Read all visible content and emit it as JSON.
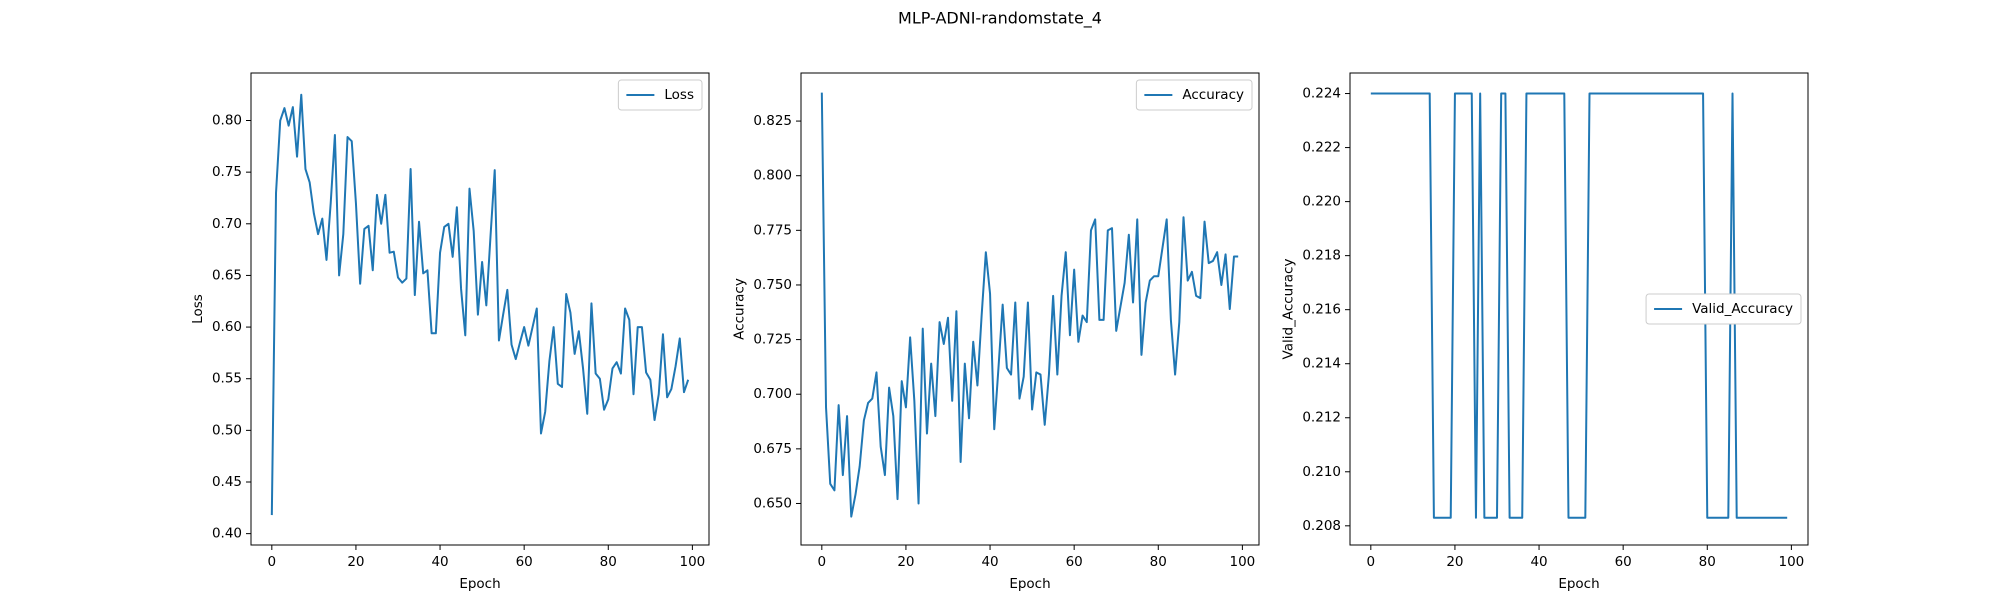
{
  "title": "MLP-ADNI-randomstate_4",
  "chart_data": [
    {
      "type": "line",
      "x_label": "Epoch",
      "y_label": "Loss",
      "legend": "upper right",
      "x": [
        0,
        1,
        2,
        3,
        4,
        5,
        6,
        7,
        8,
        9,
        10,
        11,
        12,
        13,
        14,
        15,
        16,
        17,
        18,
        19,
        20,
        21,
        22,
        23,
        24,
        25,
        26,
        27,
        28,
        29,
        30,
        31,
        32,
        33,
        34,
        35,
        36,
        37,
        38,
        39,
        40,
        41,
        42,
        43,
        44,
        45,
        46,
        47,
        48,
        49,
        50,
        51,
        52,
        53,
        54,
        55,
        56,
        57,
        58,
        59,
        60,
        61,
        62,
        63,
        64,
        65,
        66,
        67,
        68,
        69,
        70,
        71,
        72,
        73,
        74,
        75,
        76,
        77,
        78,
        79,
        80,
        81,
        82,
        83,
        84,
        85,
        86,
        87,
        88,
        89,
        90,
        91,
        92,
        93,
        94,
        95,
        96,
        97,
        98,
        99
      ],
      "series": [
        {
          "name": "Loss",
          "color": "#1f77b4",
          "values": [
            0.418,
            0.73,
            0.8,
            0.812,
            0.795,
            0.813,
            0.765,
            0.825,
            0.753,
            0.74,
            0.71,
            0.69,
            0.705,
            0.665,
            0.72,
            0.786,
            0.65,
            0.69,
            0.784,
            0.78,
            0.72,
            0.642,
            0.695,
            0.698,
            0.655,
            0.728,
            0.7,
            0.728,
            0.672,
            0.673,
            0.648,
            0.643,
            0.647,
            0.753,
            0.631,
            0.702,
            0.652,
            0.655,
            0.594,
            0.594,
            0.672,
            0.697,
            0.7,
            0.668,
            0.716,
            0.637,
            0.592,
            0.734,
            0.693,
            0.612,
            0.663,
            0.621,
            0.688,
            0.752,
            0.587,
            0.612,
            0.636,
            0.583,
            0.569,
            0.585,
            0.6,
            0.582,
            0.6,
            0.618,
            0.497,
            0.518,
            0.567,
            0.6,
            0.545,
            0.542,
            0.632,
            0.614,
            0.574,
            0.596,
            0.56,
            0.516,
            0.623,
            0.555,
            0.55,
            0.52,
            0.53,
            0.56,
            0.566,
            0.555,
            0.618,
            0.607,
            0.535,
            0.6,
            0.6,
            0.556,
            0.549,
            0.51,
            0.535,
            0.593,
            0.532,
            0.54,
            0.562,
            0.589,
            0.537,
            0.549
          ]
        }
      ],
      "xlim": [
        -4.95,
        103.95
      ],
      "xticks": [
        0,
        20,
        40,
        60,
        80,
        100
      ],
      "ylim": [
        0.389,
        0.846
      ],
      "yticks": [
        {
          "value": 0.4,
          "label": "0.40"
        },
        0.45,
        {
          "value": 0.5,
          "label": "0.50"
        },
        0.55,
        {
          "value": 0.6,
          "label": "0.60"
        },
        0.65,
        {
          "value": 0.7,
          "label": "0.70"
        },
        0.75,
        {
          "value": 0.8,
          "label": "0.80"
        }
      ]
    },
    {
      "type": "line",
      "x_label": "Epoch",
      "y_label": "Accuracy",
      "legend": "upper right",
      "x": [
        0,
        1,
        2,
        3,
        4,
        5,
        6,
        7,
        8,
        9,
        10,
        11,
        12,
        13,
        14,
        15,
        16,
        17,
        18,
        19,
        20,
        21,
        22,
        23,
        24,
        25,
        26,
        27,
        28,
        29,
        30,
        31,
        32,
        33,
        34,
        35,
        36,
        37,
        38,
        39,
        40,
        41,
        42,
        43,
        44,
        45,
        46,
        47,
        48,
        49,
        50,
        51,
        52,
        53,
        54,
        55,
        56,
        57,
        58,
        59,
        60,
        61,
        62,
        63,
        64,
        65,
        66,
        67,
        68,
        69,
        70,
        71,
        72,
        73,
        74,
        75,
        76,
        77,
        78,
        79,
        80,
        81,
        82,
        83,
        84,
        85,
        86,
        87,
        88,
        89,
        90,
        91,
        92,
        93,
        94,
        95,
        96,
        97,
        98,
        99
      ],
      "series": [
        {
          "name": "Accuracy",
          "color": "#1f77b4",
          "values": [
            0.838,
            0.694,
            0.659,
            0.656,
            0.695,
            0.663,
            0.69,
            0.644,
            0.654,
            0.667,
            0.688,
            0.696,
            0.698,
            0.71,
            0.676,
            0.663,
            0.703,
            0.69,
            0.652,
            0.706,
            0.694,
            0.726,
            0.697,
            0.65,
            0.73,
            0.682,
            0.714,
            0.69,
            0.733,
            0.723,
            0.735,
            0.697,
            0.738,
            0.669,
            0.714,
            0.689,
            0.724,
            0.704,
            0.736,
            0.765,
            0.746,
            0.684,
            0.712,
            0.741,
            0.712,
            0.709,
            0.742,
            0.698,
            0.708,
            0.742,
            0.693,
            0.71,
            0.709,
            0.686,
            0.709,
            0.745,
            0.709,
            0.745,
            0.765,
            0.727,
            0.757,
            0.724,
            0.736,
            0.733,
            0.775,
            0.78,
            0.734,
            0.734,
            0.775,
            0.776,
            0.729,
            0.74,
            0.751,
            0.773,
            0.742,
            0.78,
            0.718,
            0.742,
            0.752,
            0.754,
            0.754,
            0.767,
            0.78,
            0.734,
            0.709,
            0.733,
            0.781,
            0.752,
            0.756,
            0.745,
            0.744,
            0.779,
            0.76,
            0.761,
            0.765,
            0.75,
            0.764,
            0.739,
            0.763,
            0.763
          ]
        }
      ],
      "xlim": [
        -4.95,
        103.95
      ],
      "xticks": [
        0,
        20,
        40,
        60,
        80,
        100
      ],
      "ylim": [
        0.631,
        0.847
      ],
      "yticks": [
        {
          "value": 0.65,
          "label": "0.650"
        },
        0.675,
        {
          "value": 0.7,
          "label": "0.700"
        },
        0.725,
        {
          "value": 0.75,
          "label": "0.750"
        },
        0.775,
        {
          "value": 0.8,
          "label": "0.800"
        },
        0.825
      ]
    },
    {
      "type": "line",
      "x_label": "Epoch",
      "y_label": "Valid_Accuracy",
      "legend": "center right",
      "x": [
        0,
        1,
        2,
        3,
        4,
        5,
        6,
        7,
        8,
        9,
        10,
        11,
        12,
        13,
        14,
        15,
        16,
        17,
        18,
        19,
        20,
        21,
        22,
        23,
        24,
        25,
        26,
        27,
        28,
        29,
        30,
        31,
        32,
        33,
        34,
        35,
        36,
        37,
        38,
        39,
        40,
        41,
        42,
        43,
        44,
        45,
        46,
        47,
        48,
        49,
        50,
        51,
        52,
        53,
        54,
        55,
        56,
        57,
        58,
        59,
        60,
        61,
        62,
        63,
        64,
        65,
        66,
        67,
        68,
        69,
        70,
        71,
        72,
        73,
        74,
        75,
        76,
        77,
        78,
        79,
        80,
        81,
        82,
        83,
        84,
        85,
        86,
        87,
        88,
        89,
        90,
        91,
        92,
        93,
        94,
        95,
        96,
        97,
        98,
        99
      ],
      "series": [
        {
          "name": "Valid_Accuracy",
          "color": "#1f77b4",
          "values": [
            0.224,
            0.224,
            0.224,
            0.224,
            0.224,
            0.224,
            0.224,
            0.224,
            0.224,
            0.224,
            0.224,
            0.224,
            0.224,
            0.224,
            0.224,
            0.2083,
            0.2083,
            0.2083,
            0.2083,
            0.2083,
            0.224,
            0.224,
            0.224,
            0.224,
            0.224,
            0.2083,
            0.224,
            0.2083,
            0.2083,
            0.2083,
            0.2083,
            0.224,
            0.224,
            0.2083,
            0.2083,
            0.2083,
            0.2083,
            0.224,
            0.224,
            0.224,
            0.224,
            0.224,
            0.224,
            0.224,
            0.224,
            0.224,
            0.224,
            0.2083,
            0.2083,
            0.2083,
            0.2083,
            0.2083,
            0.224,
            0.224,
            0.224,
            0.224,
            0.224,
            0.224,
            0.224,
            0.224,
            0.224,
            0.224,
            0.224,
            0.224,
            0.224,
            0.224,
            0.224,
            0.224,
            0.224,
            0.224,
            0.224,
            0.224,
            0.224,
            0.224,
            0.224,
            0.224,
            0.224,
            0.224,
            0.224,
            0.224,
            0.2083,
            0.2083,
            0.2083,
            0.2083,
            0.2083,
            0.2083,
            0.224,
            0.2083,
            0.2083,
            0.2083,
            0.2083,
            0.2083,
            0.2083,
            0.2083,
            0.2083,
            0.2083,
            0.2083,
            0.2083,
            0.2083,
            0.2083
          ]
        }
      ],
      "xlim": [
        -4.95,
        103.95
      ],
      "xticks": [
        0,
        20,
        40,
        60,
        80,
        100
      ],
      "ylim": [
        0.20729,
        0.22476
      ],
      "yticks": [
        0.208,
        {
          "value": 0.21,
          "label": "0.210"
        },
        0.212,
        0.214,
        0.216,
        0.218,
        {
          "value": 0.22,
          "label": "0.220"
        },
        0.222,
        0.224
      ]
    }
  ]
}
